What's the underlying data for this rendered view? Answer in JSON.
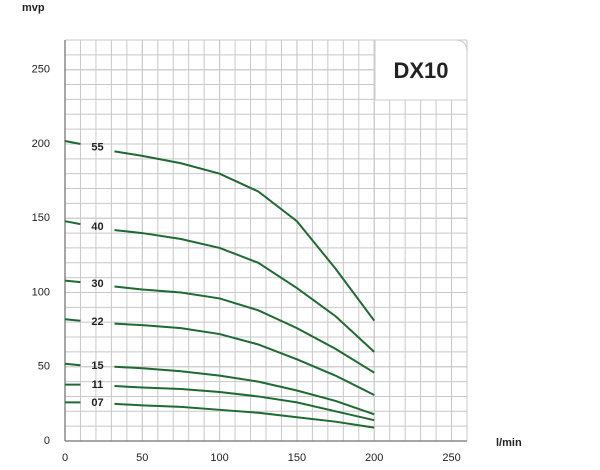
{
  "chart_data": {
    "type": "line",
    "title": "DX10",
    "y_label": "mvp",
    "x_label": "l/min",
    "x": [
      0,
      10,
      20,
      32,
      50,
      75,
      100,
      125,
      150,
      175,
      200
    ],
    "xlim": [
      0,
      260
    ],
    "ylim": [
      0,
      270
    ],
    "xticks": [
      0,
      50,
      100,
      150,
      200,
      250
    ],
    "yticks": [
      0,
      50,
      100,
      150,
      200,
      250
    ],
    "grid": true,
    "color": "#1d6b30",
    "series": [
      {
        "name": "55",
        "values": [
          202,
          200,
          null,
          195,
          192,
          187,
          180,
          168,
          148,
          116,
          81
        ]
      },
      {
        "name": "40",
        "values": [
          148,
          146,
          null,
          142,
          140,
          136,
          130,
          120,
          103,
          84,
          60
        ]
      },
      {
        "name": "30",
        "values": [
          108,
          107,
          null,
          104,
          102,
          100,
          96,
          88,
          76,
          62,
          46
        ]
      },
      {
        "name": "22",
        "values": [
          82,
          81,
          null,
          79,
          78,
          76,
          72,
          65,
          55,
          44,
          31
        ]
      },
      {
        "name": "15",
        "values": [
          52,
          51,
          null,
          50,
          49,
          47,
          44,
          40,
          34,
          27,
          18
        ]
      },
      {
        "name": "11",
        "values": [
          38,
          38,
          null,
          37,
          36,
          35,
          33,
          30,
          26,
          20,
          14
        ]
      },
      {
        "name": "07",
        "values": [
          26,
          26,
          null,
          25,
          24,
          23,
          21,
          19,
          16,
          13,
          9
        ]
      }
    ]
  }
}
